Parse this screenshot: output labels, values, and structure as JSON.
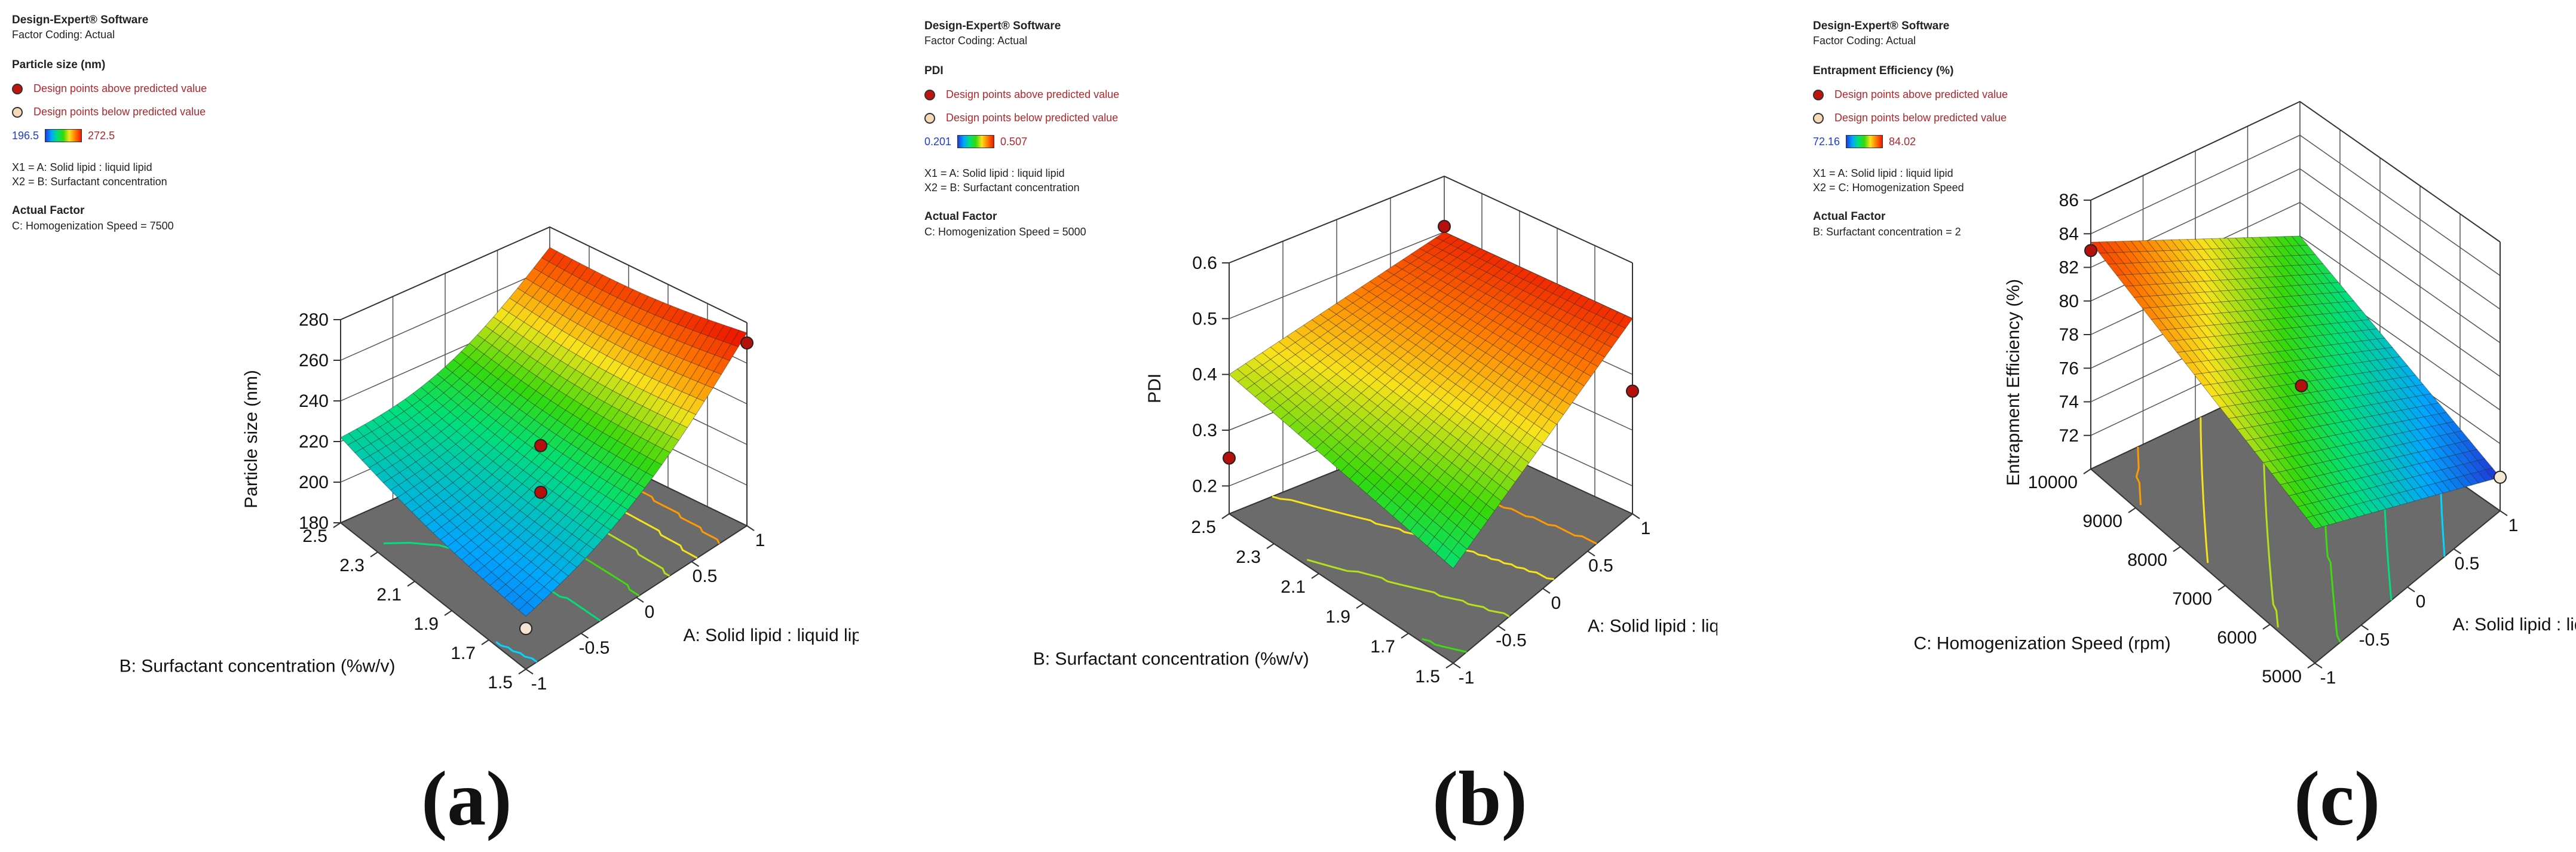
{
  "panels": [
    {
      "caption": "(a)",
      "legend": {
        "software": "Design-Expert® Software",
        "coding": "Factor Coding: Actual",
        "response": "Particle size (nm)",
        "above": "Design points above predicted value",
        "below": "Design points below predicted value",
        "low": "196.5",
        "high": "272.5",
        "x1": "X1 = A: Solid lipid : liquid lipid",
        "x2": "X2 = B: Surfactant concentration",
        "actual_title": "Actual Factor",
        "actual_value": "C: Homogenization Speed = 7500"
      }
    },
    {
      "caption": "(b)",
      "legend": {
        "software": "Design-Expert® Software",
        "coding": "Factor Coding: Actual",
        "response": "PDI",
        "above": "Design points above predicted value",
        "below": "Design points below predicted value",
        "low": "0.201",
        "high": "0.507",
        "x1": "X1 = A: Solid lipid : liquid lipid",
        "x2": "X2 = B: Surfactant concentration",
        "actual_title": "Actual Factor",
        "actual_value": "C: Homogenization Speed = 5000"
      }
    },
    {
      "caption": "(c)",
      "legend": {
        "software": "Design-Expert® Software",
        "coding": "Factor Coding: Actual",
        "response": "Entrapment Efficiency (%)",
        "above": "Design points above predicted value",
        "below": "Design points below predicted value",
        "low": "72.16",
        "high": "84.02",
        "x1": "X1 = A: Solid lipid : liquid lipid",
        "x2": "X2 = C: Homogenization Speed",
        "actual_title": "Actual Factor",
        "actual_value": "B: Surfactant concentration = 2"
      }
    }
  ],
  "chart_data": [
    {
      "type": "surface3d",
      "zlabel": "Particle size (nm)",
      "xlabel": "A: Solid lipid : liquid lipid",
      "ylabel": "B: Surfactant concentration (%w/v)",
      "x_ticks": [
        "-1",
        "-0.5",
        "0",
        "0.5",
        "1"
      ],
      "y_ticks": [
        "1.5",
        "1.7",
        "1.9",
        "2.1",
        "2.3",
        "2.5"
      ],
      "z_ticks": [
        "180",
        "200",
        "220",
        "240",
        "260",
        "280"
      ],
      "xlim": [
        -1,
        1
      ],
      "ylim": [
        1.5,
        2.5
      ],
      "zlim": [
        180,
        280
      ],
      "colorscale": [
        196.5,
        272.5
      ],
      "surface_corners": {
        "x=-1,y=1.5": 204,
        "x=1,y=1.5": 273,
        "x=-1,y=2.5": 220,
        "x=1,y=2.5": 268
      },
      "points": [
        {
          "x": -1,
          "y": 1.5,
          "z": 200,
          "above": false
        },
        {
          "x": 1,
          "y": 1.5,
          "z": 270,
          "above": true
        },
        {
          "x": 0,
          "y": 2,
          "z": 225,
          "above": true
        },
        {
          "x": 0,
          "y": 2,
          "z": 202,
          "above": true
        }
      ]
    },
    {
      "type": "surface3d",
      "zlabel": "PDI",
      "xlabel": "A: Solid lipid : liquid lipid",
      "ylabel": "B: Surfactant concentration (%w/v)",
      "x_ticks": [
        "-1",
        "-0.5",
        "0",
        "0.5",
        "1"
      ],
      "y_ticks": [
        "1.5",
        "1.7",
        "1.9",
        "2.1",
        "2.3",
        "2.5"
      ],
      "z_ticks": [
        "0.2",
        "0.3",
        "0.4",
        "0.5",
        "0.6"
      ],
      "xlim": [
        -1,
        1
      ],
      "ylim": [
        1.5,
        2.5
      ],
      "zlim": [
        0.15,
        0.6
      ],
      "colorscale": [
        0.201,
        0.507
      ],
      "surface_corners": {
        "x=-1,y=1.5": 0.32,
        "x=1,y=1.5": 0.5,
        "x=-1,y=2.5": 0.4,
        "x=1,y=2.5": 0.5
      },
      "points": [
        {
          "x": 1,
          "y": 2.5,
          "z": 0.51,
          "above": true
        },
        {
          "x": 1,
          "y": 1.5,
          "z": 0.37,
          "above": true
        },
        {
          "x": -1,
          "y": 2.5,
          "z": 0.25,
          "above": true
        }
      ]
    },
    {
      "type": "surface3d",
      "zlabel": "Entrapment Efficiency (%)",
      "xlabel": "A: Solid lipid : liquid lipid",
      "ylabel": "C: Homogenization Speed (rpm)",
      "x_ticks": [
        "-1",
        "-0.5",
        "0",
        "0.5",
        "1"
      ],
      "y_ticks": [
        "5000",
        "6000",
        "7000",
        "8000",
        "9000",
        "10000"
      ],
      "z_ticks": [
        "72",
        "74",
        "76",
        "78",
        "80",
        "82",
        "84",
        "86"
      ],
      "xlim": [
        -1,
        1
      ],
      "ylim": [
        5000,
        10000
      ],
      "zlim": [
        70,
        86
      ],
      "colorscale": [
        72.16,
        84.02
      ],
      "surface_corners": {
        "x=-1,y=5000": 78,
        "x=1,y=5000": 72,
        "x=-1,y=10000": 83.5,
        "x=1,y=10000": 78
      },
      "points": [
        {
          "x": -1,
          "y": 10000,
          "z": 83,
          "above": true
        },
        {
          "x": 0,
          "y": 7500,
          "z": 77,
          "above": true
        },
        {
          "x": 1,
          "y": 5000,
          "z": 72,
          "above": false
        }
      ]
    }
  ]
}
